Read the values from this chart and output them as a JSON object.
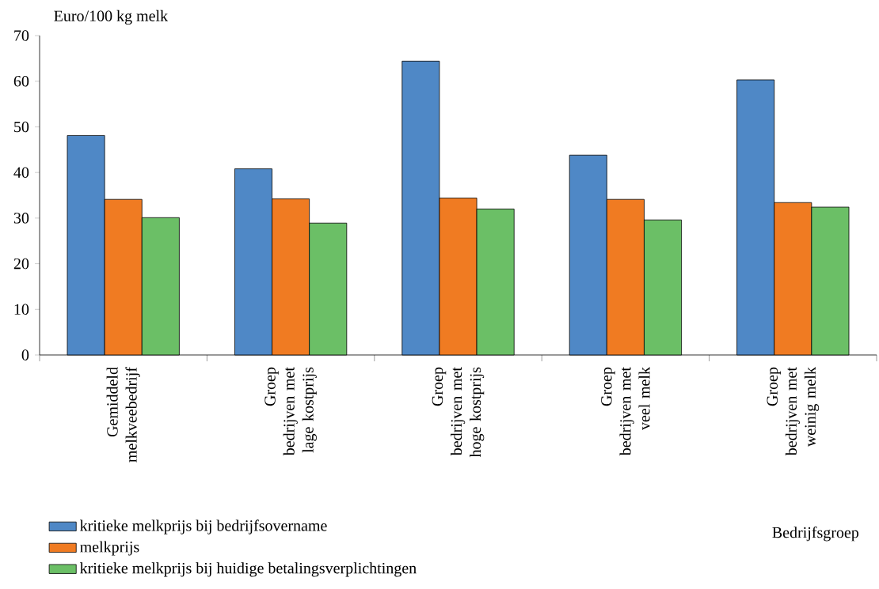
{
  "chart_data": {
    "type": "bar",
    "ylabel": "Euro/100 kg melk",
    "xlabel": "Bedrijfsgroep",
    "categories": [
      "Gemiddeld melkveebedrijf",
      "Groep bedrijven met lage kostprijs",
      "Groep bedrijven met hoge kostprijs",
      "Groep bedrijven met veel melk",
      "Groep bedrijven met weinig melk"
    ],
    "series": [
      {
        "name": "kritieke melkprijs bij bedrijfsovername",
        "color": "#4f88c6",
        "values": [
          48.1,
          40.8,
          64.4,
          43.8,
          60.3
        ]
      },
      {
        "name": "melkprijs",
        "color": "#f07b22",
        "values": [
          34.1,
          34.2,
          34.4,
          34.1,
          33.4
        ]
      },
      {
        "name": "kritieke melkprijs bij huidige betalingsverplichtingen",
        "color": "#6bbf66",
        "values": [
          30.1,
          28.9,
          32.0,
          29.6,
          32.4
        ]
      }
    ],
    "ylim": [
      0,
      70
    ],
    "yticks": [
      0,
      10,
      20,
      30,
      40,
      50,
      60,
      70
    ],
    "legend": "bottom"
  }
}
